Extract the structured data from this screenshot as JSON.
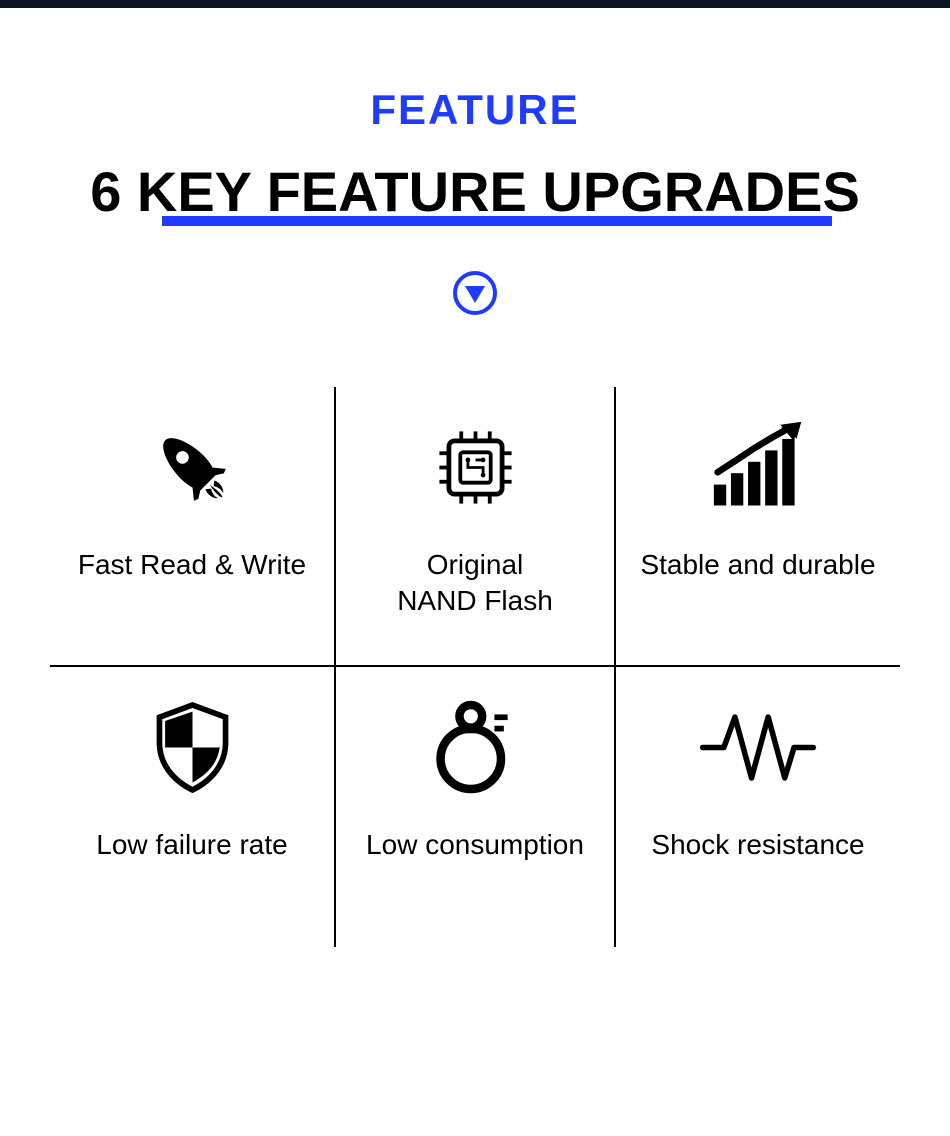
{
  "header": {
    "feature_label": "FEATURE",
    "title": "6 KEY FEATURE UPGRADES"
  },
  "colors": {
    "accent": "#1e3bff",
    "text": "#000000",
    "underline": "#1e3bff",
    "background": "#ffffff",
    "topbar": "#0a1628"
  },
  "typography": {
    "feature_label_fontsize": 42,
    "title_fontsize": 56,
    "cell_label_fontsize": 28
  },
  "layout": {
    "type": "infographic",
    "grid_rows": 2,
    "grid_cols": 3,
    "divider_width": 2,
    "divider_color": "#000000"
  },
  "features": [
    {
      "icon": "rocket-icon",
      "label": "Fast Read & Write"
    },
    {
      "icon": "chip-icon",
      "label": "Original\nNAND Flash"
    },
    {
      "icon": "chart-icon",
      "label": "Stable and durable"
    },
    {
      "icon": "shield-icon",
      "label": "Low failure rate"
    },
    {
      "icon": "gauge-icon",
      "label": "Low consumption"
    },
    {
      "icon": "wave-icon",
      "label": "Shock resistance"
    }
  ]
}
